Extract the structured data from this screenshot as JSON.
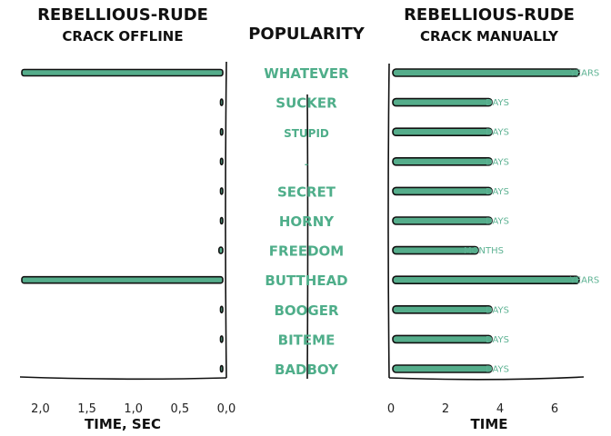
{
  "chart_data": [
    {
      "type": "bar",
      "orientation": "horizontal",
      "direction": "reversed",
      "title": "REBELLIOUS-RUDE",
      "subtitle": "CRACK OFFLINE",
      "xlabel": "TIME, SEC",
      "xlim": [
        2.2,
        0.0
      ],
      "xticks": [
        "2,0",
        "1,5",
        "1,0",
        "0,5",
        "0,0"
      ],
      "xtick_values": [
        2.0,
        1.5,
        1.0,
        0.5,
        0.0
      ],
      "categories": [
        "WHATEVER",
        "SUCKER",
        "STUPID",
        "-",
        "SECRET",
        "HORNY",
        "FREEDOM",
        "BUTTHEAD",
        "BOOGER",
        "BITEME",
        "BADBOY"
      ],
      "values": [
        2.2,
        0.01,
        0.01,
        0.01,
        0.01,
        0.01,
        0.08,
        2.2,
        0.01,
        0.01,
        0.005
      ]
    },
    {
      "type": "table",
      "title": "POPULARITY",
      "categories": [
        "WHATEVER",
        "SUCKER",
        "STUPID",
        "-",
        "SECRET",
        "HORNY",
        "FREEDOM",
        "BUTTHEAD",
        "BOOGER",
        "BITEME",
        "BADBOY"
      ]
    },
    {
      "type": "bar",
      "orientation": "horizontal",
      "title": "REBELLIOUS-RUDE",
      "subtitle": "CRACK MANUALLY",
      "xlabel": "TIME",
      "xlim": [
        0,
        7
      ],
      "xticks": [
        "0",
        "2",
        "4",
        "6"
      ],
      "xtick_values": [
        0,
        2,
        4,
        6
      ],
      "categories": [
        "WHATEVER",
        "SUCKER",
        "STUPID",
        "-",
        "SECRET",
        "HORNY",
        "FREEDOM",
        "BUTTHEAD",
        "BOOGER",
        "BITEME",
        "BADBOY"
      ],
      "values": [
        6.9,
        3.7,
        3.7,
        3.7,
        3.7,
        3.7,
        3.2,
        6.9,
        3.7,
        3.7,
        3.7
      ],
      "value_labels": [
        "YEARS",
        "DAYS",
        "DAYS",
        "DAYS",
        "DAYS",
        "DAYS",
        "MONTHS",
        "YEARS",
        "DAYS",
        "DAYS",
        "DAYS"
      ]
    }
  ],
  "colors": {
    "bar": "#55ad8b",
    "words": "#4fae8a",
    "ink": "#111111"
  }
}
